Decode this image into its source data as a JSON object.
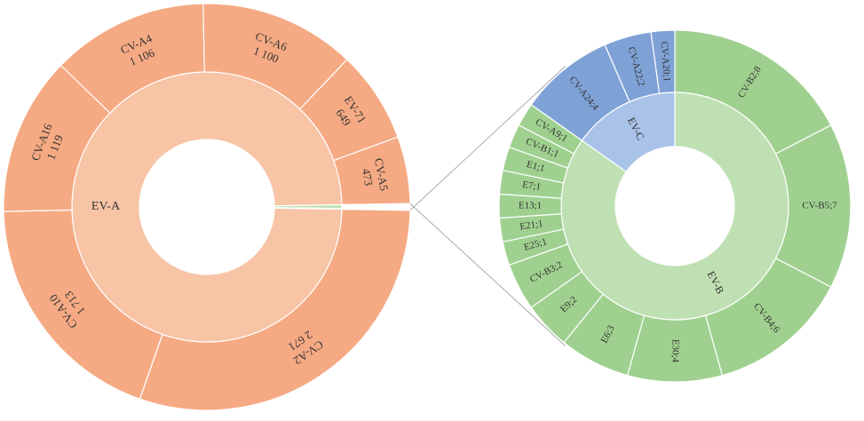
{
  "chart_data": {
    "type": "sunburst",
    "groups": [
      {
        "name": "EV-A",
        "inner_color": "#f8c4a6",
        "outer_color": "#f5aa84",
        "children": [
          {
            "name": "CV-A2",
            "value": 2671,
            "value_label": "2 671"
          },
          {
            "name": "CV-A10",
            "value": 1713,
            "value_label": "1 713"
          },
          {
            "name": "CV-A16",
            "value": 1119,
            "value_label": "1 119"
          },
          {
            "name": "CV-A4",
            "value": 1106,
            "value_label": "1 106"
          },
          {
            "name": "CV-A6",
            "value": 1100,
            "value_label": "1 100"
          },
          {
            "name": "EV-71",
            "value": 649
          },
          {
            "name": "CV-A5",
            "value": 473
          }
        ]
      },
      {
        "name": "EV-B",
        "inner_color": "#bfe0b3",
        "outer_color": "#9fd08f",
        "children": [
          {
            "label": "CV-B2;8",
            "value": 8
          },
          {
            "label": "CV-B5;7",
            "value": 7
          },
          {
            "label": "CV-B4;6",
            "value": 6
          },
          {
            "label": "E30;4",
            "value": 4
          },
          {
            "label": "E6;3",
            "value": 3
          },
          {
            "label": "E9;2",
            "value": 2
          },
          {
            "label": "CV-B3;2",
            "value": 2
          },
          {
            "label": "E25;1",
            "value": 1
          },
          {
            "label": "E21;1",
            "value": 1
          },
          {
            "label": "E13;1",
            "value": 1
          },
          {
            "label": "E7;1",
            "value": 1
          },
          {
            "label": "E1;1",
            "value": 1
          },
          {
            "label": "CV-B1;1",
            "value": 1
          },
          {
            "label": "CV-A9;1",
            "value": 1
          }
        ]
      },
      {
        "name": "EV-C",
        "inner_color": "#a9c2e8",
        "outer_color": "#7fa2d6",
        "children": [
          {
            "label": "CV-A24;4",
            "value": 4
          },
          {
            "label": "CV-A22;2",
            "value": 2
          },
          {
            "label": "CV-A20;1",
            "value": 1
          }
        ]
      }
    ]
  }
}
